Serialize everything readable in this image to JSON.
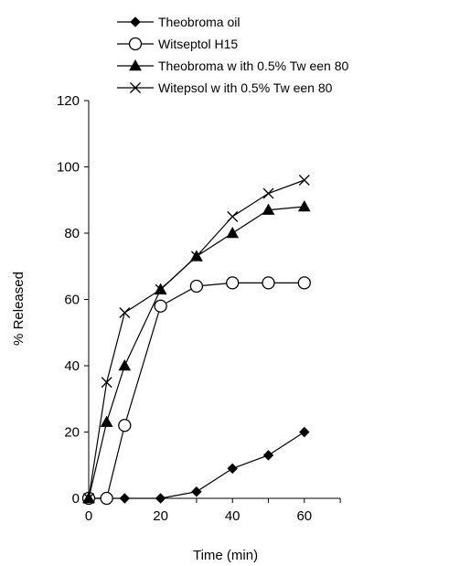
{
  "chart_data": {
    "type": "line",
    "title": "",
    "xlabel": "Time (min)",
    "ylabel": "% Released",
    "xlim": [
      0,
      70
    ],
    "ylim": [
      0,
      120
    ],
    "xticks": [
      0,
      20,
      40,
      60
    ],
    "yticks": [
      0,
      20,
      40,
      60,
      80,
      100,
      120
    ],
    "legend_position": "top-left",
    "grid": false,
    "series": [
      {
        "name": "Theobroma oil",
        "marker": "diamond-filled",
        "points": [
          [
            0,
            0
          ],
          [
            10,
            0
          ],
          [
            20,
            0
          ],
          [
            30,
            2
          ],
          [
            40,
            9
          ],
          [
            50,
            13
          ],
          [
            60,
            20
          ]
        ]
      },
      {
        "name": "Witseptol H15",
        "marker": "circle-open",
        "points": [
          [
            0,
            0
          ],
          [
            5,
            0
          ],
          [
            10,
            22
          ],
          [
            20,
            58
          ],
          [
            30,
            64
          ],
          [
            40,
            65
          ],
          [
            50,
            65
          ],
          [
            60,
            65
          ]
        ]
      },
      {
        "name": "Theobroma w ith 0.5% Tw een 80",
        "marker": "triangle-filled",
        "points": [
          [
            0,
            0
          ],
          [
            5,
            23
          ],
          [
            10,
            40
          ],
          [
            20,
            63
          ],
          [
            30,
            73
          ],
          [
            40,
            80
          ],
          [
            50,
            87
          ],
          [
            60,
            88
          ]
        ]
      },
      {
        "name": "Witepsol w ith 0.5% Tw een 80",
        "marker": "cross",
        "points": [
          [
            0,
            0
          ],
          [
            5,
            35
          ],
          [
            10,
            56
          ],
          [
            20,
            63
          ],
          [
            30,
            73
          ],
          [
            40,
            85
          ],
          [
            50,
            92
          ],
          [
            60,
            96
          ]
        ]
      }
    ]
  }
}
